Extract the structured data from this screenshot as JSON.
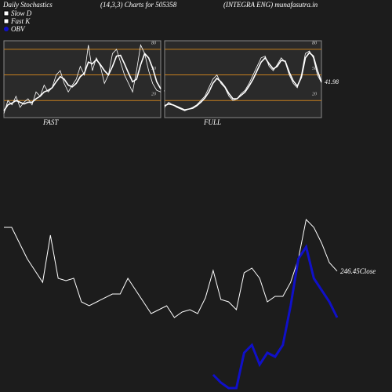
{
  "header": {
    "left": "Daily Stochastics",
    "middle": "(14,3,3) Charts for 505358",
    "right": "(INTEGRA ENG) munafasutra.in"
  },
  "chart_data": [
    {
      "type": "line",
      "xlabel": "FAST",
      "ylim": [
        0,
        90
      ],
      "yticks": [
        20,
        50,
        80
      ],
      "grid": true,
      "grid_color": "#c8801e",
      "end_label_series": 0,
      "series": [
        {
          "name": "Slow D",
          "color": "#ffffff",
          "width": 1.6,
          "values": [
            8,
            15,
            17,
            20,
            18,
            16,
            18,
            18,
            22,
            25,
            30,
            32,
            35,
            42,
            48,
            45,
            38,
            36,
            40,
            48,
            52,
            65,
            63,
            68,
            62,
            55,
            50,
            60,
            72,
            73,
            63,
            52,
            42,
            45,
            62,
            75,
            70,
            58,
            42,
            33.57
          ]
        },
        {
          "name": "Fast K",
          "color": "#ffffff",
          "width": 0.8,
          "values": [
            5,
            20,
            15,
            25,
            12,
            18,
            22,
            15,
            30,
            25,
            38,
            30,
            35,
            50,
            55,
            40,
            30,
            38,
            45,
            60,
            50,
            85,
            55,
            70,
            60,
            40,
            50,
            75,
            80,
            65,
            50,
            40,
            30,
            55,
            85,
            75,
            55,
            40,
            32,
            30
          ]
        }
      ]
    },
    {
      "type": "line",
      "xlabel": "FULL",
      "ylim": [
        0,
        90
      ],
      "yticks": [
        20,
        50,
        80
      ],
      "grid": true,
      "grid_color": "#c8801e",
      "end_label_series": 0,
      "series": [
        {
          "name": "Slow D",
          "color": "#ffffff",
          "width": 1.6,
          "values": [
            14,
            16,
            15,
            13,
            11,
            9,
            10,
            11,
            14,
            18,
            23,
            30,
            40,
            46,
            42,
            36,
            28,
            22,
            22,
            26,
            30,
            37,
            45,
            55,
            65,
            70,
            63,
            57,
            60,
            67,
            66,
            53,
            43,
            37,
            47,
            70,
            76,
            72,
            55,
            41.98
          ]
        },
        {
          "name": "Fast K",
          "color": "#ffffff",
          "width": 0.8,
          "values": [
            12,
            18,
            15,
            12,
            10,
            8,
            10,
            12,
            15,
            20,
            25,
            35,
            45,
            50,
            40,
            35,
            25,
            20,
            22,
            28,
            32,
            40,
            50,
            60,
            70,
            72,
            60,
            55,
            62,
            70,
            65,
            50,
            40,
            35,
            50,
            75,
            78,
            70,
            50,
            41
          ]
        }
      ]
    },
    {
      "type": "line",
      "ylim": [
        110,
        340
      ],
      "y2lim": [
        0,
        260
      ],
      "grid": false,
      "series": [
        {
          "name": "Close",
          "color": "#ffffff",
          "width": 1,
          "end_label": "246.45Close",
          "values": [
            295.8,
            295.8,
            278.1,
            260.4,
            247.1,
            233.8,
            286.9,
            238.3,
            235.6,
            238.3,
            211.7,
            207.3,
            211.7,
            216.2,
            220.6,
            220.6,
            238.3,
            225.0,
            211.7,
            198.5,
            202.9,
            207.3,
            194.0,
            200.2,
            202.9,
            198.5,
            216.2,
            247.1,
            214.4,
            211.7,
            202.9,
            244.5,
            249.8,
            238.3,
            211.7,
            217.9,
            217.9,
            233.8,
            260.4,
            304.6,
            295.8,
            278.1,
            256.0,
            246.45
          ]
        },
        {
          "name": "OBV",
          "color": "#1010c8",
          "width": 3,
          "axis": "y2",
          "values": [
            null,
            null,
            null,
            null,
            null,
            null,
            null,
            null,
            null,
            null,
            null,
            null,
            null,
            null,
            null,
            null,
            null,
            null,
            null,
            null,
            null,
            null,
            null,
            null,
            null,
            null,
            null,
            22,
            12,
            5,
            5,
            50,
            60,
            35,
            50,
            45,
            60,
            110,
            170,
            185,
            145,
            130,
            115,
            95
          ]
        }
      ]
    }
  ]
}
